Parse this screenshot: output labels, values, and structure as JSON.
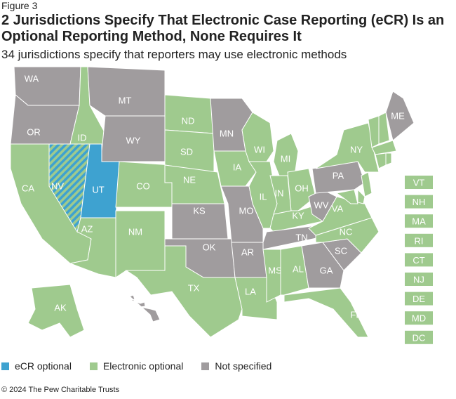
{
  "figure_label": "Figure 3",
  "title": "2 Jurisdictions Specify That Electronic Case Reporting (eCR) Is an Optional Reporting Method, None Requires It",
  "subtitle": "34 jurisdictions specify that reporters may use electronic methods",
  "colors": {
    "ecr": "#3ea2d0",
    "electronic": "#9fca8e",
    "none": "#a09c9e"
  },
  "legend": [
    {
      "key": "ecr",
      "label": "eCR optional"
    },
    {
      "key": "electronic",
      "label": "Electronic optional"
    },
    {
      "key": "none",
      "label": "Not specified"
    }
  ],
  "states": {
    "WA": "none",
    "OR": "none",
    "CA": "electronic",
    "NV": "ecr+electronic",
    "ID": "electronic",
    "MT": "none",
    "WY": "none",
    "UT": "ecr",
    "CO": "electronic",
    "AZ": "electronic",
    "NM": "electronic",
    "ND": "electronic",
    "SD": "electronic",
    "NE": "electronic",
    "KS": "none",
    "OK": "none",
    "TX": "electronic",
    "MN": "none",
    "IA": "electronic",
    "MO": "none",
    "AR": "none",
    "LA": "electronic",
    "WI": "electronic",
    "IL": "electronic",
    "MI": "electronic",
    "IN": "electronic",
    "OH": "electronic",
    "KY": "electronic",
    "TN": "none",
    "MS": "electronic",
    "AL": "electronic",
    "GA": "none",
    "FL": "electronic",
    "SC": "none",
    "NC": "electronic",
    "VA": "electronic",
    "WV": "none",
    "PA": "none",
    "NY": "electronic",
    "ME": "none",
    "VT": "electronic",
    "NH": "electronic",
    "MA": "electronic",
    "RI": "electronic",
    "CT": "electronic",
    "NJ": "electronic",
    "DE": "electronic",
    "MD": "electronic",
    "DC": "electronic",
    "AK": "electronic",
    "HI": "none"
  },
  "inset_labels": [
    "VT",
    "NH",
    "MA",
    "RI",
    "CT",
    "NJ",
    "DE",
    "MD",
    "DC"
  ],
  "copyright": "© 2024 The Pew Charitable Trusts"
}
